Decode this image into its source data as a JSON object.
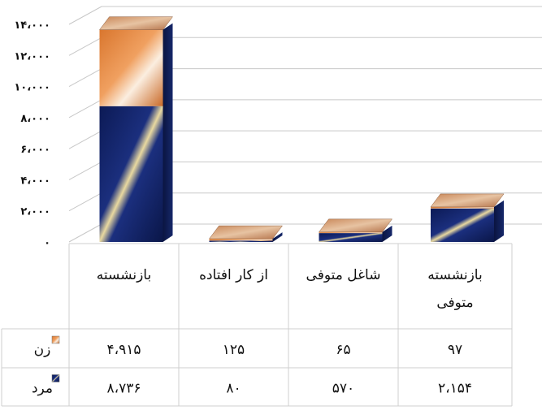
{
  "chart_data": {
    "type": "bar",
    "stacked": true,
    "three_d": true,
    "categories": [
      "بازنشسته",
      "از کار افتاده",
      "شاغل متوفی",
      "بازنشسته متوفی"
    ],
    "category_lines": [
      [
        "بازنشسته"
      ],
      [
        "از کار افتاده"
      ],
      [
        "شاغل متوفی"
      ],
      [
        "بازنشسته",
        "متوفی"
      ]
    ],
    "series": [
      {
        "name": "مرد",
        "values": [
          8736,
          80,
          570,
          2154
        ],
        "display_values": [
          "۸،۷۳۶",
          "۸۰",
          "۵۷۰",
          "۲،۱۵۴"
        ],
        "color": "#14266e"
      },
      {
        "name": "زن",
        "values": [
          4915,
          125,
          65,
          97
        ],
        "display_values": [
          "۴،۹۱۵",
          "۱۲۵",
          "۶۵",
          "۹۷"
        ],
        "color": "#e89248"
      }
    ],
    "ylim": [
      0,
      14000
    ],
    "yticks": [
      0,
      2000,
      4000,
      6000,
      8000,
      10000,
      12000,
      14000
    ],
    "ytick_labels": [
      "۰",
      "۲،۰۰۰",
      "۴،۰۰۰",
      "۶،۰۰۰",
      "۸،۰۰۰",
      "۱۰،۰۰۰",
      "۱۲،۰۰۰",
      "۱۴،۰۰۰"
    ],
    "grid": true,
    "legend": "data-table",
    "title": "",
    "xlabel": "",
    "ylabel": ""
  }
}
